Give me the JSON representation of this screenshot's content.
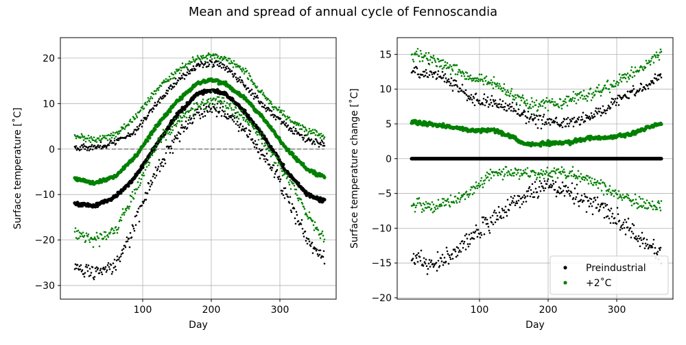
{
  "suptitle": "Mean and spread of annual cycle of Fennoscandia",
  "chart_data": [
    {
      "type": "scatter",
      "xlabel": "Day",
      "ylabel": "Surface temperature [˚C]",
      "xlim": [
        -20,
        382
      ],
      "ylim": [
        -33,
        24.5
      ],
      "xticks": [
        100,
        200,
        300
      ],
      "yticks": [
        -30,
        -20,
        -10,
        0,
        10,
        20
      ],
      "grid": true,
      "reference_line": {
        "y": 0,
        "style": "dashed",
        "color": "#808080"
      },
      "days": [
        1,
        365
      ],
      "series": [
        {
          "color": "#000000",
          "role": "mean",
          "anchors": [
            [
              1,
              -12
            ],
            [
              30,
              -12.5
            ],
            [
              60,
              -10.5
            ],
            [
              90,
              -6
            ],
            [
              120,
              1
            ],
            [
              150,
              7.5
            ],
            [
              180,
              12.2
            ],
            [
              200,
              13
            ],
            [
              220,
              12.2
            ],
            [
              250,
              8
            ],
            [
              280,
              2
            ],
            [
              310,
              -5
            ],
            [
              340,
              -10
            ],
            [
              365,
              -11.5
            ]
          ],
          "noise": 0.35,
          "size": 2.6
        },
        {
          "color": "#000000",
          "role": "upper",
          "anchors": [
            [
              1,
              0.5
            ],
            [
              30,
              0.3
            ],
            [
              60,
              1.5
            ],
            [
              90,
              4
            ],
            [
              120,
              10
            ],
            [
              150,
              15
            ],
            [
              180,
              18.5
            ],
            [
              200,
              19
            ],
            [
              220,
              18
            ],
            [
              250,
              14
            ],
            [
              280,
              9
            ],
            [
              310,
              5
            ],
            [
              340,
              2
            ],
            [
              365,
              1
            ]
          ],
          "noise": 0.7,
          "size": 1.3
        },
        {
          "color": "#000000",
          "role": "lower",
          "anchors": [
            [
              1,
              -26
            ],
            [
              30,
              -27
            ],
            [
              60,
              -26
            ],
            [
              80,
              -20
            ],
            [
              100,
              -12
            ],
            [
              120,
              -5
            ],
            [
              150,
              3
            ],
            [
              180,
              8
            ],
            [
              200,
              9
            ],
            [
              220,
              8
            ],
            [
              250,
              4
            ],
            [
              280,
              -2
            ],
            [
              310,
              -10
            ],
            [
              340,
              -20
            ],
            [
              365,
              -24
            ]
          ],
          "noise": 1.5,
          "size": 1.3
        },
        {
          "color": "#008000",
          "role": "mean",
          "anchors": [
            [
              1,
              -6.5
            ],
            [
              30,
              -7.5
            ],
            [
              60,
              -6
            ],
            [
              90,
              -1.5
            ],
            [
              120,
              5
            ],
            [
              150,
              10.5
            ],
            [
              180,
              14.5
            ],
            [
              200,
              15.2
            ],
            [
              220,
              14.5
            ],
            [
              250,
              11
            ],
            [
              280,
              6
            ],
            [
              310,
              0
            ],
            [
              340,
              -4.5
            ],
            [
              365,
              -6.2
            ]
          ],
          "noise": 0.35,
          "size": 2.6
        },
        {
          "color": "#008000",
          "role": "upper",
          "anchors": [
            [
              1,
              3
            ],
            [
              30,
              2
            ],
            [
              60,
              3
            ],
            [
              90,
              7
            ],
            [
              120,
              13
            ],
            [
              150,
              17
            ],
            [
              180,
              20
            ],
            [
              200,
              20.5
            ],
            [
              220,
              20
            ],
            [
              250,
              17
            ],
            [
              280,
              11
            ],
            [
              310,
              7
            ],
            [
              340,
              4
            ],
            [
              365,
              3
            ]
          ],
          "noise": 0.7,
          "size": 1.3
        },
        {
          "color": "#008000",
          "role": "lower",
          "anchors": [
            [
              1,
              -18
            ],
            [
              30,
              -20
            ],
            [
              60,
              -18
            ],
            [
              80,
              -12
            ],
            [
              100,
              -6
            ],
            [
              120,
              1
            ],
            [
              150,
              6
            ],
            [
              180,
              9.5
            ],
            [
              200,
              11
            ],
            [
              220,
              10
            ],
            [
              250,
              7
            ],
            [
              280,
              1
            ],
            [
              310,
              -6
            ],
            [
              340,
              -14
            ],
            [
              365,
              -20
            ]
          ],
          "noise": 1.2,
          "size": 1.3
        }
      ]
    },
    {
      "type": "scatter",
      "xlabel": "Day",
      "ylabel": "Surface temperature change [˚C]",
      "xlim": [
        -20,
        382
      ],
      "ylim": [
        -20.2,
        17.4
      ],
      "xticks": [
        100,
        200,
        300
      ],
      "yticks": [
        -20,
        -15,
        -10,
        -5,
        0,
        5,
        10,
        15
      ],
      "grid": true,
      "legend": {
        "position": "bottom-right",
        "entries": [
          {
            "label": "Preindustrial",
            "color": "#000000"
          },
          {
            "label": "+2˚C",
            "color": "#008000"
          }
        ]
      },
      "days": [
        1,
        365
      ],
      "series": [
        {
          "color": "#000000",
          "role": "mean",
          "anchors": [
            [
              1,
              0
            ],
            [
              365,
              0
            ]
          ],
          "noise": 0,
          "size": 2.6
        },
        {
          "color": "#000000",
          "role": "upper",
          "anchors": [
            [
              1,
              12.5
            ],
            [
              30,
              12.5
            ],
            [
              60,
              11
            ],
            [
              90,
              8.5
            ],
            [
              120,
              8
            ],
            [
              150,
              7
            ],
            [
              180,
              5.5
            ],
            [
              200,
              5.5
            ],
            [
              220,
              5
            ],
            [
              250,
              5.5
            ],
            [
              280,
              7
            ],
            [
              310,
              9
            ],
            [
              340,
              10.5
            ],
            [
              365,
              12
            ]
          ],
          "noise": 0.8,
          "size": 1.3
        },
        {
          "color": "#000000",
          "role": "lower",
          "anchors": [
            [
              1,
              -14
            ],
            [
              30,
              -15.5
            ],
            [
              60,
              -14
            ],
            [
              90,
              -11
            ],
            [
              120,
              -9
            ],
            [
              150,
              -6
            ],
            [
              180,
              -4.8
            ],
            [
              200,
              -4
            ],
            [
              220,
              -4.5
            ],
            [
              250,
              -5.5
            ],
            [
              280,
              -7
            ],
            [
              310,
              -9.5
            ],
            [
              340,
              -12
            ],
            [
              365,
              -14
            ]
          ],
          "noise": 1.3,
          "size": 1.3
        },
        {
          "color": "#008000",
          "role": "mean",
          "anchors": [
            [
              1,
              5.3
            ],
            [
              30,
              5
            ],
            [
              60,
              4.5
            ],
            [
              90,
              4
            ],
            [
              120,
              4.2
            ],
            [
              150,
              3
            ],
            [
              170,
              2
            ],
            [
              200,
              2.2
            ],
            [
              230,
              2.3
            ],
            [
              260,
              3
            ],
            [
              290,
              3
            ],
            [
              320,
              3.5
            ],
            [
              345,
              4.5
            ],
            [
              365,
              5
            ]
          ],
          "noise": 0.25,
          "size": 2.6
        },
        {
          "color": "#008000",
          "role": "upper",
          "anchors": [
            [
              1,
              15
            ],
            [
              30,
              14.5
            ],
            [
              60,
              13
            ],
            [
              90,
              11.5
            ],
            [
              120,
              11
            ],
            [
              150,
              9
            ],
            [
              180,
              7.5
            ],
            [
              200,
              7.8
            ],
            [
              220,
              8
            ],
            [
              250,
              9
            ],
            [
              280,
              10
            ],
            [
              310,
              11.5
            ],
            [
              340,
              13.5
            ],
            [
              365,
              15
            ]
          ],
          "noise": 0.8,
          "size": 1.3
        },
        {
          "color": "#008000",
          "role": "lower",
          "anchors": [
            [
              1,
              -6.5
            ],
            [
              30,
              -7
            ],
            [
              60,
              -6
            ],
            [
              90,
              -4.5
            ],
            [
              120,
              -2
            ],
            [
              150,
              -2
            ],
            [
              180,
              -2.2
            ],
            [
              200,
              -2
            ],
            [
              220,
              -1.8
            ],
            [
              250,
              -2.5
            ],
            [
              280,
              -4
            ],
            [
              310,
              -5.5
            ],
            [
              340,
              -6.5
            ],
            [
              365,
              -7
            ]
          ],
          "noise": 0.8,
          "size": 1.3
        }
      ]
    }
  ]
}
